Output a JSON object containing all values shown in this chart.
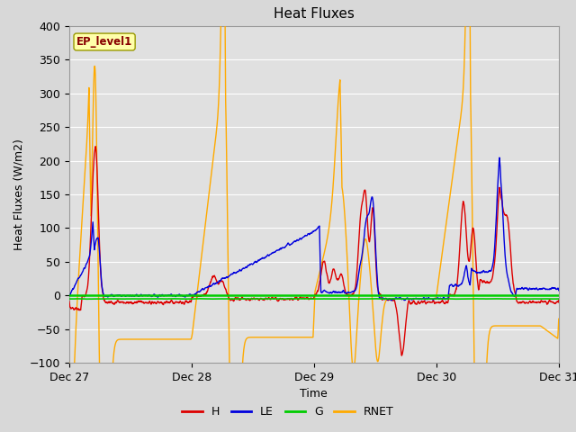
{
  "title": "Heat Fluxes",
  "ylabel": "Heat Fluxes (W/m2)",
  "xlabel": "Time",
  "legend_label": "EP_level1",
  "ylim": [
    -100,
    400
  ],
  "yticks": [
    -100,
    -50,
    0,
    50,
    100,
    150,
    200,
    250,
    300,
    350,
    400
  ],
  "xlim": [
    0,
    4
  ],
  "xtick_positions": [
    0,
    1,
    2,
    3,
    4
  ],
  "xtick_labels": [
    "Dec 27",
    "Dec 28",
    "Dec 29",
    "Dec 30",
    "Dec 31"
  ],
  "fig_bg_color": "#d8d8d8",
  "plot_bg_color": "#e0e0e0",
  "grid_color": "#ffffff",
  "series_colors": {
    "H": "#dd0000",
    "LE": "#0000dd",
    "G": "#00cc00",
    "RNET": "#ffaa00"
  }
}
